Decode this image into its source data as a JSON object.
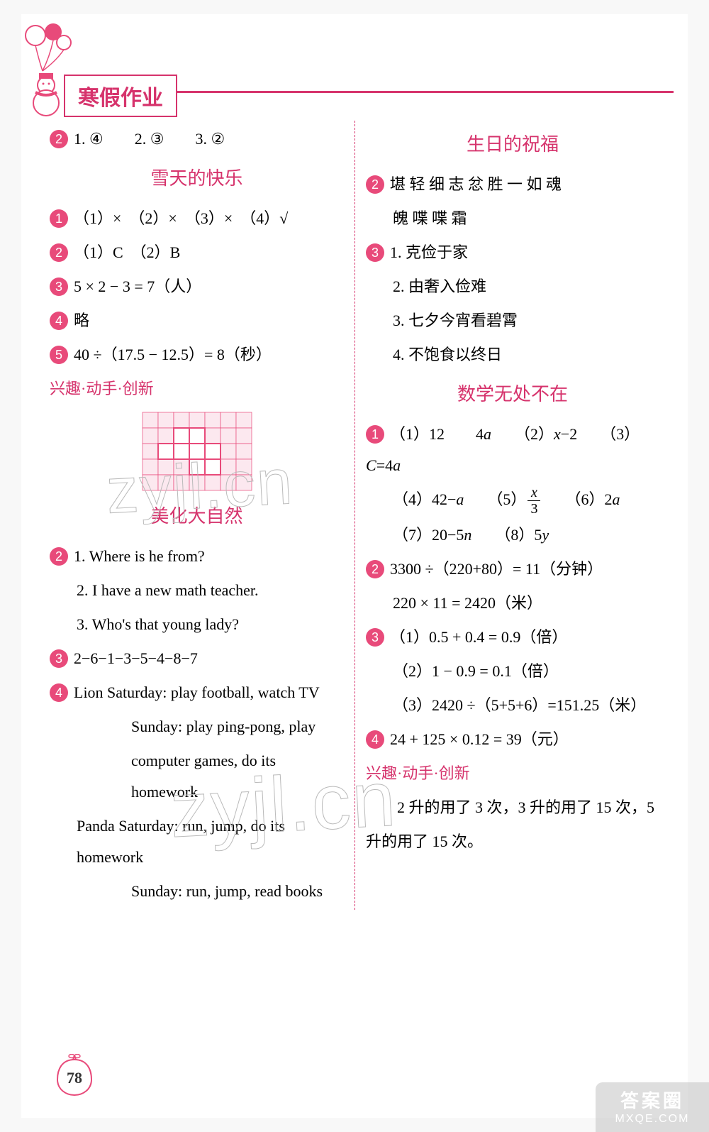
{
  "colors": {
    "accent": "#d6336c",
    "badge": "#e84a7a",
    "ink": "#1a1a1a",
    "grid_border": "#e84a7a",
    "grid_fill": "#fce8ef"
  },
  "header": {
    "title": "寒假作业"
  },
  "page_number": "78",
  "watermark": "zyjl.cn",
  "brand": {
    "cn": "答案圈",
    "en": "MXQE.COM"
  },
  "left": {
    "top_line": {
      "badge": "2",
      "text": "1. ④　　2. ③　　3. ②"
    },
    "sec1": {
      "title": "雪天的快乐",
      "l1": {
        "badge": "1",
        "text": "（1）×　（2）×　（3）×　（4）√"
      },
      "l2": {
        "badge": "2",
        "text": "（1）C　（2）B"
      },
      "l3": {
        "badge": "3",
        "text": "5 × 2 − 3 = 7（人）"
      },
      "l4": {
        "badge": "4",
        "text": "略"
      },
      "l5": {
        "badge": "5",
        "text": "40 ÷（17.5 − 12.5）= 8（秒）"
      },
      "note": "兴趣·动手·创新"
    },
    "sec2": {
      "title": "美化大自然",
      "l1_badge": "2",
      "l1a": "1. Where is he from?",
      "l1b": "2. I have a new math teacher.",
      "l1c": "3. Who's that young lady?",
      "l2": {
        "badge": "3",
        "text": "2−6−1−3−5−4−8−7"
      },
      "l3_badge": "4",
      "l3a": "Lion  Saturday: play football, watch TV",
      "l3b": "Sunday: play ping-pong, play",
      "l3c": "computer games, do its homework",
      "l3d": "Panda  Saturday: run, jump, do its homework",
      "l3e": "Sunday: run, jump, read books"
    }
  },
  "right": {
    "sec1": {
      "title": "生日的祝福",
      "l1": {
        "badge": "2",
        "text": "堪  轻  细  志  忿  胜  一  如  魂"
      },
      "l1b": "魄  喋  喋  霜",
      "l2_badge": "3",
      "l2a": "1. 克俭于家",
      "l2b": "2. 由奢入俭难",
      "l2c": "3. 七夕今宵看碧霄",
      "l2d": "4. 不饱食以终日"
    },
    "sec2": {
      "title": "数学无处不在",
      "l1_badge": "1",
      "l1a_pre": "（1）12　　4",
      "l1a_var1": "a",
      "l1a_mid": "　　（2）",
      "l1a_var2": "x",
      "l1a_post": "−2　　（3）",
      "l1a_var3": "C",
      "l1a_eq": "=4",
      "l1a_var4": "a",
      "l1b_pre": "（4）42−",
      "l1b_var1": "a",
      "l1b_mid": "　　（5）",
      "frac_n": "x",
      "frac_d": "3",
      "l1b_post": "　　（6）2",
      "l1b_var2": "a",
      "l1c_pre": "（7）20−5",
      "l1c_var1": "n",
      "l1c_mid": "　　（8）5",
      "l1c_var2": "y",
      "l2": {
        "badge": "2",
        "text": "3300 ÷（220+80）= 11（分钟）"
      },
      "l2b": "220 × 11 = 2420（米）",
      "l3_badge": "3",
      "l3a": "（1）0.5 + 0.4 = 0.9（倍）",
      "l3b": "（2）1 − 0.9 = 0.1（倍）",
      "l3c": "（3）2420 ÷（5+5+6）=151.25（米）",
      "l4": {
        "badge": "4",
        "text": "24 + 125 × 0.12 = 39（元）"
      },
      "note": "兴趣·动手·创新",
      "foot1": "　　2 升的用了 3 次，3 升的用了 15 次，5",
      "foot2": "升的用了 15 次。"
    }
  },
  "grid": {
    "cols": 7,
    "rows": 5,
    "cell": 22,
    "heavy_cells": [
      [
        1,
        2
      ],
      [
        2,
        2
      ],
      [
        2,
        1
      ],
      [
        3,
        1
      ],
      [
        3,
        2
      ],
      [
        3,
        3
      ],
      [
        4,
        3
      ],
      [
        4,
        2
      ]
    ]
  }
}
